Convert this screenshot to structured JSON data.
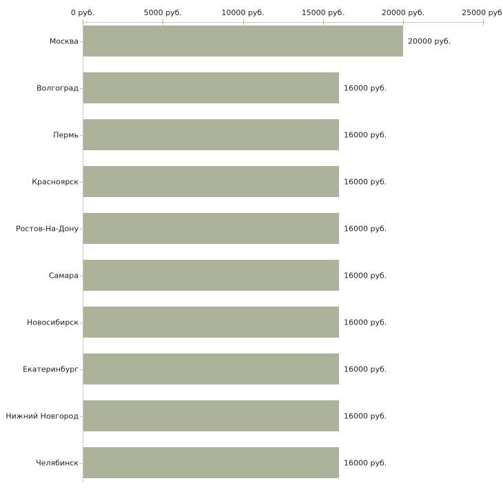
{
  "chart_data": {
    "type": "bar",
    "orientation": "horizontal",
    "title": "",
    "xlabel": "",
    "ylabel": "",
    "categories": [
      "Москва",
      "Волгоград",
      "Пермь",
      "Красноярск",
      "Ростов-На-Дону",
      "Самара",
      "Новосибирск",
      "Екатеринбург",
      "Нижний Новгород",
      "Челябинск"
    ],
    "values": [
      20000,
      16000,
      16000,
      16000,
      16000,
      16000,
      16000,
      16000,
      16000,
      16000
    ],
    "value_labels": [
      "20000 руб.",
      "16000 руб.",
      "16000 руб.",
      "16000 руб.",
      "16000 руб.",
      "16000 руб.",
      "16000 руб.",
      "16000 руб.",
      "16000 руб.",
      "16000 руб."
    ],
    "x_tick_values": [
      0,
      5000,
      10000,
      15000,
      20000,
      25000
    ],
    "x_tick_labels": [
      "0 руб.",
      "5000 руб.",
      "10000 руб.",
      "15000 руб.",
      "20000 руб.",
      "25000 руб."
    ],
    "xlim": [
      0,
      25000
    ],
    "grid": false,
    "legend": false,
    "colors": {
      "bar": "#adb29a",
      "axis_line": "#c8c8c8",
      "x_tick": "#b6b78a",
      "y_tick": "#c6c7a2",
      "text": "#222222",
      "background": "#ffffff"
    }
  }
}
